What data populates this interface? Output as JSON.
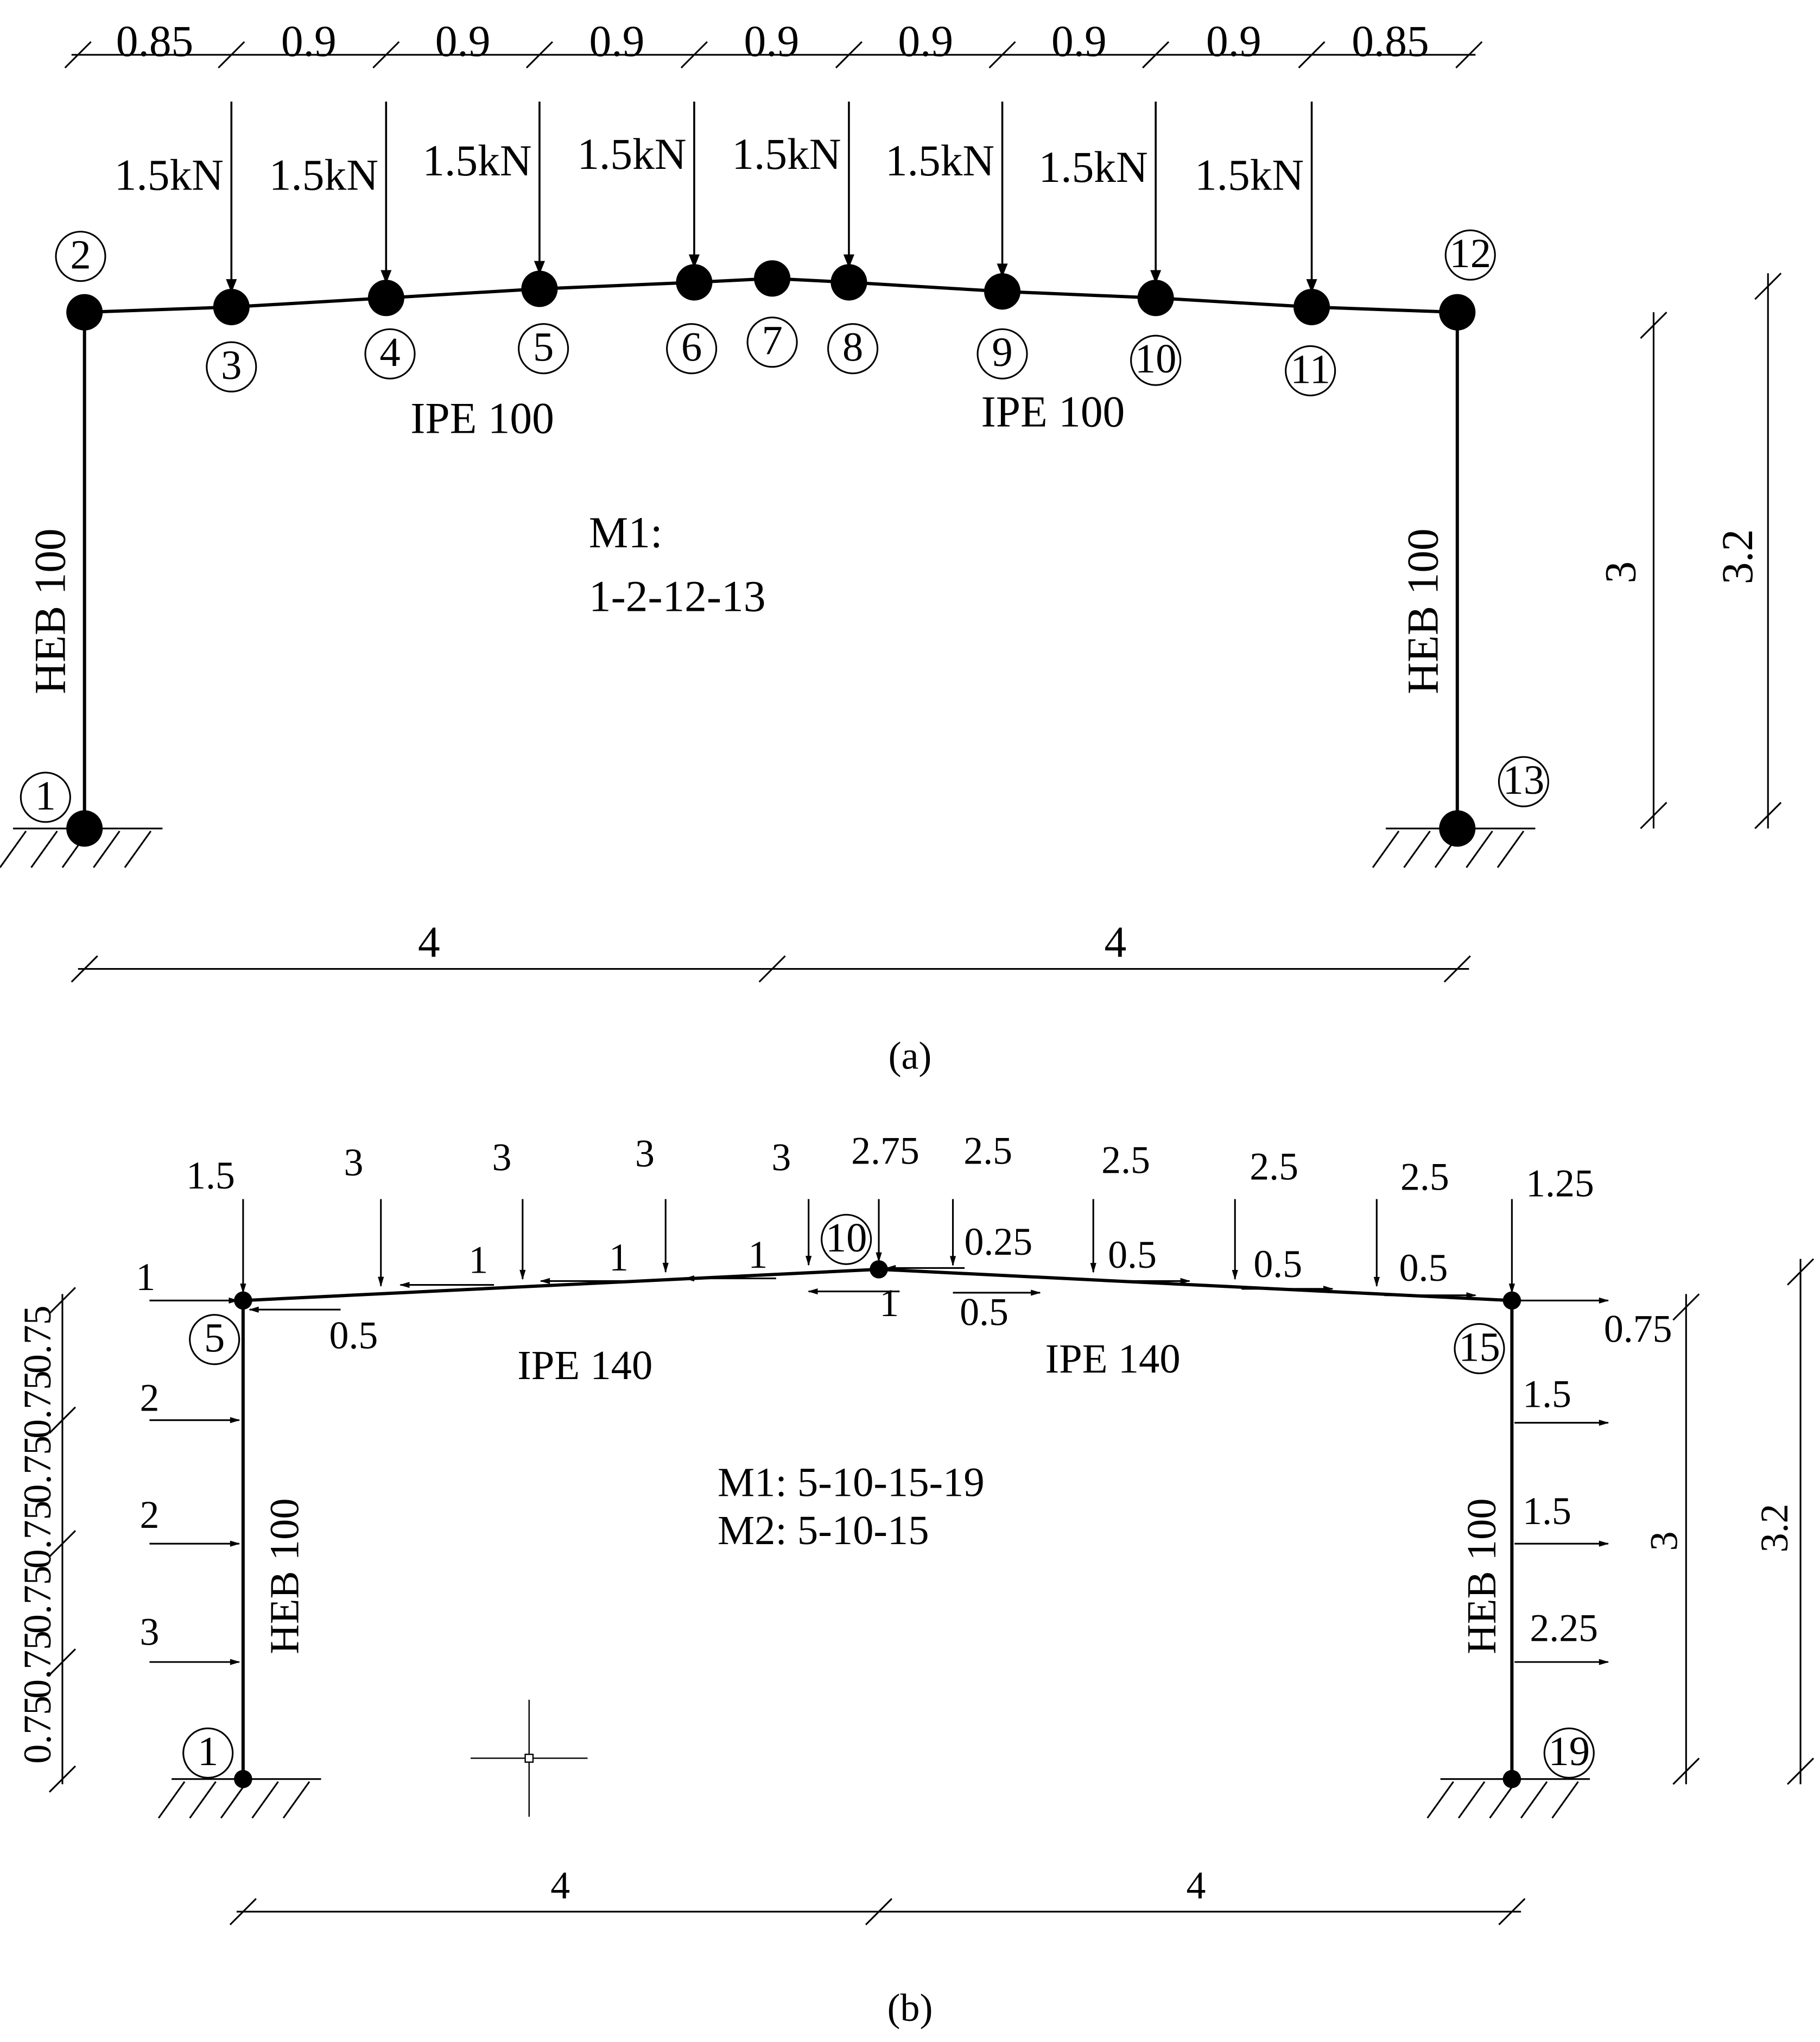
{
  "panel_a": {
    "span_dimensions": [
      "0.85",
      "0.9",
      "0.9",
      "0.9",
      "0.9",
      "0.9",
      "0.9",
      "0.9",
      "0.85"
    ],
    "point_loads": [
      "1.5kN",
      "1.5kN",
      "1.5kN",
      "1.5kN",
      "1.5kN",
      "1.5kN",
      "1.5kN",
      "1.5kN"
    ],
    "nodes": [
      "1",
      "2",
      "3",
      "4",
      "5",
      "6",
      "7",
      "8",
      "9",
      "10",
      "11",
      "12",
      "13"
    ],
    "beam_sections": [
      "IPE 100",
      "IPE 100"
    ],
    "column_sections": [
      "HEB 100",
      "HEB 100"
    ],
    "mechanism": [
      "M1:",
      "1-2-12-13"
    ],
    "height_dimensions": [
      "3",
      "3.2"
    ],
    "width_dimensions": [
      "4",
      "4"
    ],
    "caption": "(a)"
  },
  "panel_b": {
    "vertical_loads": [
      "1.5",
      "3",
      "3",
      "3",
      "3",
      "2.75",
      "2.5",
      "2.5",
      "2.5",
      "2.5",
      "1.25"
    ],
    "roof_horizontal_loads": [
      "1",
      "0.5",
      "1",
      "1",
      "1",
      "1",
      "0.25",
      "0.5",
      "0.5",
      "0.5",
      "0.5",
      "0.75"
    ],
    "left_column_loads": [
      "2",
      "2",
      "3"
    ],
    "right_column_loads": [
      "1.5",
      "1.5",
      "2.25"
    ],
    "nodes": [
      "5",
      "10",
      "15",
      "1",
      "19"
    ],
    "beam_sections": [
      "IPE 140",
      "IPE 140"
    ],
    "column_sections": [
      "HEB 100",
      "HEB 100"
    ],
    "mechanisms": [
      "M1: 5-10-15-19",
      "M2: 5-10-15"
    ],
    "segment_dimensions": [
      "0.75",
      "0.75",
      "0.75",
      "0.75",
      "0.75",
      "0.75",
      "0.75"
    ],
    "height_dimensions": [
      "3",
      "3.2"
    ],
    "width_dimensions": [
      "4",
      "4"
    ],
    "caption": "(b)"
  }
}
